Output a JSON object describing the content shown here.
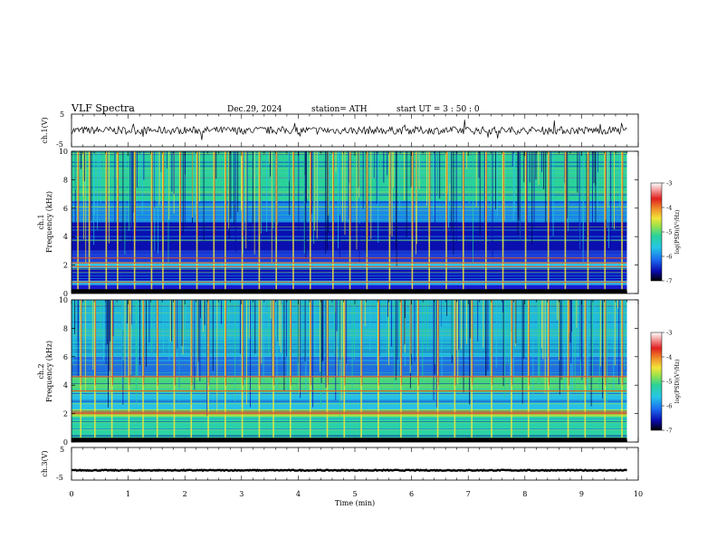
{
  "header": {
    "title": "VLF  Spectra",
    "date": "Dec.29, 2024",
    "station": "station= ATH",
    "start": "start  UT  =   3  : 50 : 0"
  },
  "chart_data": [
    {
      "type": "line",
      "panel": "ch1-waveform",
      "ylabel": "ch.1(V)",
      "yticks": [
        "5",
        "-5"
      ],
      "ylim": [
        -5,
        5
      ],
      "xlim": [
        0,
        9.8
      ],
      "level": 0,
      "amplitude": 1.2
    },
    {
      "type": "heatmap",
      "panel": "ch1-spectrogram",
      "ylabel": "ch.1",
      "ylabel2": "Frequency (kHz)",
      "yticks": [
        "0",
        "2",
        "4",
        "6",
        "8",
        "10"
      ],
      "ylim": [
        0,
        10
      ],
      "xlim": [
        0,
        9.8
      ],
      "bands": [
        {
          "range": [
            0.0,
            0.3
          ],
          "color": "#000000"
        },
        {
          "range": [
            0.3,
            0.6
          ],
          "color": "#1a1ad0"
        },
        {
          "range": [
            0.6,
            0.9
          ],
          "color": "#25c6e6"
        },
        {
          "range": [
            0.9,
            1.8
          ],
          "color": "#0a10b8"
        },
        {
          "range": [
            1.8,
            2.2
          ],
          "color": "#28c8f0"
        },
        {
          "range": [
            2.2,
            3.0
          ],
          "color": "#1a40d8"
        },
        {
          "range": [
            3.0,
            5.0
          ],
          "color": "#0a0fb0"
        },
        {
          "range": [
            5.0,
            6.5
          ],
          "color": "#1b8be6"
        },
        {
          "range": [
            6.5,
            10.0
          ],
          "color": "#2ad29a"
        }
      ],
      "lines_khz": [
        0.8,
        1.9,
        2.15,
        2.5
      ],
      "burst_times_min": [
        0.1,
        0.3,
        0.6,
        0.8,
        1.1,
        1.4,
        1.6,
        1.9,
        2.2,
        2.5,
        2.7,
        3.0,
        3.3,
        3.6,
        3.9,
        4.2,
        4.6,
        4.9,
        5.2,
        5.6,
        6.0,
        6.3,
        6.6,
        6.9,
        7.3,
        7.6,
        8.0,
        8.4,
        8.7,
        9.1,
        9.4,
        9.7
      ]
    },
    {
      "type": "heatmap",
      "panel": "ch2-spectrogram",
      "ylabel": "ch.2",
      "ylabel2": "Frequency (kHz)",
      "yticks": [
        "0",
        "2",
        "4",
        "6",
        "8",
        "10"
      ],
      "ylim": [
        0,
        10
      ],
      "xlim": [
        0,
        9.8
      ],
      "bands": [
        {
          "range": [
            0.0,
            0.3
          ],
          "color": "#000000"
        },
        {
          "range": [
            0.3,
            1.8
          ],
          "color": "#2bd3a4"
        },
        {
          "range": [
            1.8,
            2.3
          ],
          "color": "#9be24a"
        },
        {
          "range": [
            2.3,
            3.5
          ],
          "color": "#25c0e8"
        },
        {
          "range": [
            3.5,
            4.6
          ],
          "color": "#46d57d"
        },
        {
          "range": [
            4.6,
            6.0
          ],
          "color": "#1e70e0"
        },
        {
          "range": [
            6.0,
            10.0
          ],
          "color": "#22b8d8"
        }
      ],
      "lines_khz": [
        2.0,
        2.1,
        3.6,
        4.6
      ],
      "burst_times_min": [
        0.15,
        0.4,
        0.7,
        1.0,
        1.25,
        1.5,
        1.8,
        2.1,
        2.4,
        2.7,
        3.0,
        3.3,
        3.55,
        3.85,
        4.2,
        4.5,
        4.8,
        5.1,
        5.4,
        5.8,
        6.1,
        6.45,
        6.75,
        7.05,
        7.4,
        7.75,
        8.05,
        8.4,
        8.75,
        9.05,
        9.4,
        9.7
      ]
    },
    {
      "type": "line",
      "panel": "ch3-waveform",
      "ylabel": "ch.3(V)",
      "yticks": [
        "5",
        "-5"
      ],
      "ylim": [
        -5,
        5
      ],
      "xlim": [
        0,
        9.8
      ],
      "level": -2,
      "amplitude": 0.15
    }
  ],
  "x_axis": {
    "label": "Time  (min)",
    "ticks": [
      "0",
      "1",
      "2",
      "3",
      "4",
      "5",
      "6",
      "7",
      "8",
      "9",
      "10"
    ],
    "range": [
      0,
      10
    ]
  },
  "colorbars": [
    {
      "ticks": [
        "-3",
        "-4",
        "-5",
        "-6",
        "-7"
      ],
      "range": [
        -7,
        -3
      ],
      "label": "log(PSD)(V²/Hz)"
    },
    {
      "ticks": [
        "-3",
        "-4",
        "-5",
        "-6",
        "-7"
      ],
      "range": [
        -7,
        -3
      ],
      "label": "log(PSD)(V²/Hz)"
    }
  ],
  "colormap": [
    "#000000",
    "#0b0bb0",
    "#1a6ef0",
    "#25c6e6",
    "#2ad29a",
    "#9be24a",
    "#f2e43a",
    "#f08a2a",
    "#e02020",
    "#f4a0a0",
    "#ffffff"
  ]
}
